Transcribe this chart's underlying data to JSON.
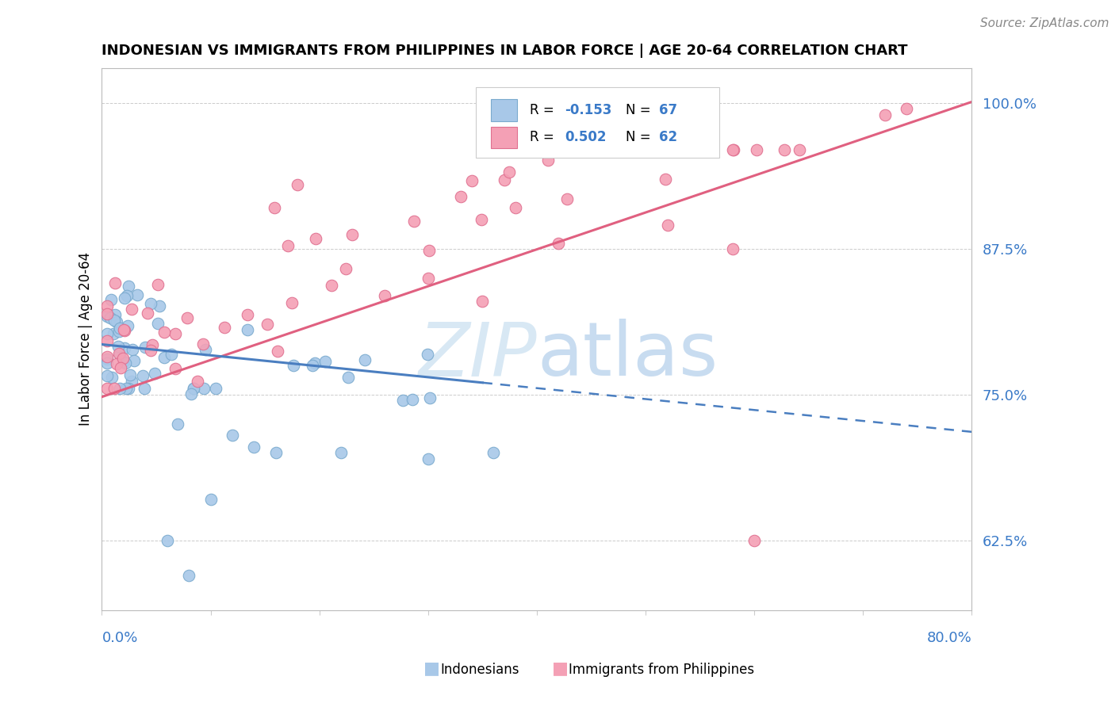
{
  "title": "INDONESIAN VS IMMIGRANTS FROM PHILIPPINES IN LABOR FORCE | AGE 20-64 CORRELATION CHART",
  "source": "Source: ZipAtlas.com",
  "ylabel": "In Labor Force | Age 20-64",
  "right_yticks": [
    "62.5%",
    "75.0%",
    "87.5%",
    "100.0%"
  ],
  "right_ytick_vals": [
    0.625,
    0.75,
    0.875,
    1.0
  ],
  "xmin": 0.0,
  "xmax": 0.8,
  "ymin": 0.565,
  "ymax": 1.03,
  "blue_color": "#A8C8E8",
  "blue_edge_color": "#7AAACE",
  "pink_color": "#F4A0B5",
  "pink_edge_color": "#E07090",
  "blue_line_color": "#4A7EC0",
  "pink_line_color": "#E06080",
  "watermark_color": "#D8E8F4",
  "title_fontsize": 13,
  "source_fontsize": 11,
  "tick_fontsize": 13,
  "ylabel_fontsize": 12,
  "legend_fontsize": 12,
  "scatter_size": 110,
  "indo_line_y0": 0.793,
  "indo_line_y1": 0.718,
  "phil_line_y0": 0.748,
  "phil_line_y1": 1.001
}
